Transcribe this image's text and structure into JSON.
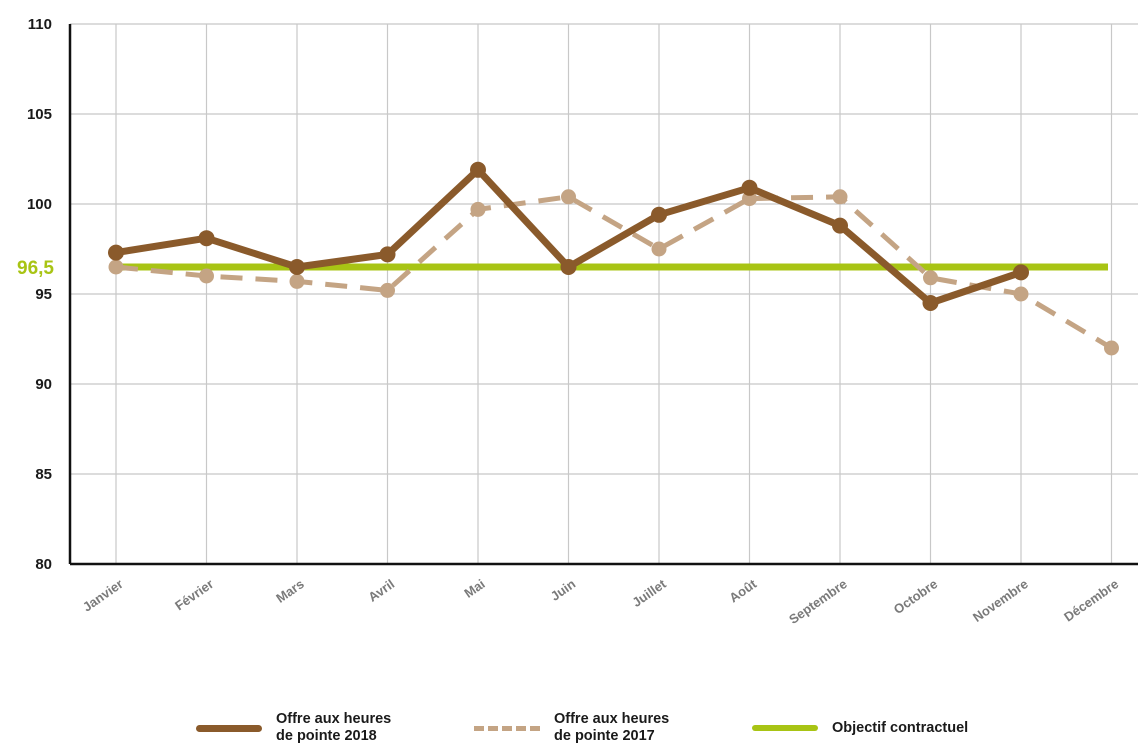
{
  "chart_data": {
    "type": "line",
    "categories": [
      "Janvier",
      "Février",
      "Mars",
      "Avril",
      "Mai",
      "Juin",
      "Juillet",
      "Août",
      "Septembre",
      "Octobre",
      "Novembre",
      "Décembre"
    ],
    "ylim": [
      80,
      110
    ],
    "yticks": [
      "80",
      "85",
      "90",
      "95",
      "100",
      "105",
      "110"
    ],
    "grid": true,
    "series": [
      {
        "name": "Offre aux heures de pointe 2018",
        "style": "solid",
        "color": "#8a5a2b",
        "values": [
          97.3,
          98.1,
          96.5,
          97.2,
          101.9,
          96.5,
          99.4,
          100.9,
          98.8,
          94.5,
          96.2,
          null
        ]
      },
      {
        "name": "Offre aux heures de pointe 2017",
        "style": "dashed",
        "color": "#c4a484",
        "values": [
          96.5,
          96.0,
          95.7,
          95.2,
          99.7,
          100.4,
          97.5,
          100.3,
          100.4,
          95.9,
          95.0,
          92.0
        ]
      }
    ],
    "target": {
      "name": "Objectif contractuel",
      "value": 96.5,
      "label": "96,5",
      "color": "#a8c414"
    }
  },
  "legend": {
    "items": [
      {
        "line1": "Offre aux heures",
        "line2": "de pointe 2018"
      },
      {
        "line1": "Offre aux heures",
        "line2": "de pointe 2017"
      },
      {
        "line1": "Objectif contractuel",
        "line2": ""
      }
    ]
  }
}
